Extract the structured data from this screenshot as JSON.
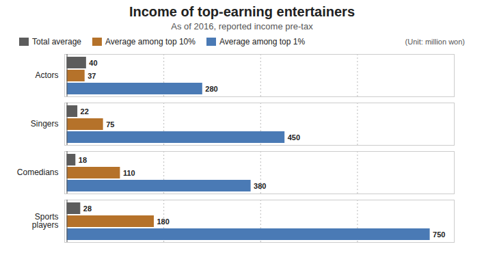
{
  "chart_data": {
    "type": "bar",
    "orientation": "horizontal",
    "title": "Income of top-earning entertainers",
    "subtitle": "As of 2016, reported income pre-tax",
    "annotations": [
      "(Unit: million won)"
    ],
    "categories": [
      "Actors",
      "Singers",
      "Comedians",
      "Sports\nplayers"
    ],
    "series": [
      {
        "name": "Total average",
        "color": "#5c5c5c",
        "values": [
          40,
          22,
          18,
          28
        ]
      },
      {
        "name": "Average among top 10%",
        "color": "#b5722a",
        "values": [
          37,
          75,
          110,
          180
        ]
      },
      {
        "name": "Average among top 1%",
        "color": "#4a7ab5",
        "values": [
          280,
          450,
          380,
          750
        ]
      }
    ],
    "xlim": [
      -5,
      800
    ],
    "xticks": [
      200,
      400,
      600,
      800
    ],
    "grid": true,
    "tick_labels": false,
    "data_labels": true,
    "legend": "upper left"
  }
}
